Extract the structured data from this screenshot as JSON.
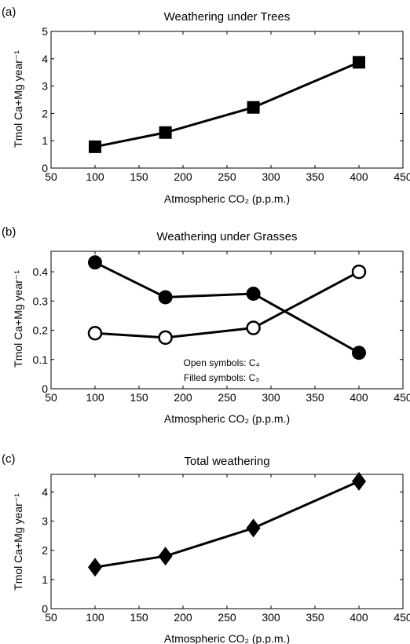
{
  "chart_data": [
    {
      "type": "line",
      "panel_label": "(a)",
      "title": "Weathering under Trees",
      "xlabel": "Atmospheric CO₂ (p.p.m.)",
      "ylabel": "Tmol Ca+Mg year⁻¹",
      "xlim": [
        50,
        450
      ],
      "ylim": [
        0,
        5
      ],
      "xticks": [
        "50",
        "100",
        "150",
        "200",
        "250",
        "300",
        "350",
        "400",
        "450"
      ],
      "yticks": [
        "0",
        "1",
        "2",
        "3",
        "4",
        "5"
      ],
      "grid": false,
      "annotations": [],
      "series": [
        {
          "marker": "square-filled",
          "x": [
            100,
            180,
            280,
            400
          ],
          "y": [
            0.78,
            1.3,
            2.22,
            3.87
          ]
        }
      ]
    },
    {
      "type": "line",
      "panel_label": "(b)",
      "title": "Weathering under Grasses",
      "xlabel": "Atmospheric CO₂ (p.p.m.)",
      "ylabel": "Tmol Ca+Mg year⁻¹",
      "xlim": [
        50,
        450
      ],
      "ylim": [
        0,
        0.47
      ],
      "xticks": [
        "50",
        "100",
        "150",
        "200",
        "250",
        "300",
        "350",
        "400",
        "450"
      ],
      "yticks": [
        "0",
        "0.1",
        "0.2",
        "0.3",
        "0.4"
      ],
      "grid": false,
      "annotations": [
        "Open symbols: C₄",
        "Filled symbols: C₃"
      ],
      "series": [
        {
          "marker": "circle-filled",
          "x": [
            100,
            180,
            280,
            400
          ],
          "y": [
            0.432,
            0.313,
            0.325,
            0.123
          ]
        },
        {
          "marker": "circle-open",
          "x": [
            100,
            180,
            280,
            400
          ],
          "y": [
            0.19,
            0.175,
            0.208,
            0.4
          ]
        }
      ]
    },
    {
      "type": "line",
      "panel_label": "(c)",
      "title": "Total weathering",
      "xlabel": "Atmospheric CO₂ (p.p.m.)",
      "ylabel": "Tmol Ca+Mg year⁻¹",
      "xlim": [
        50,
        450
      ],
      "ylim": [
        0,
        4.6
      ],
      "xticks": [
        "50",
        "100",
        "150",
        "200",
        "250",
        "300",
        "350",
        "400",
        "450"
      ],
      "yticks": [
        "0",
        "1",
        "2",
        "3",
        "4"
      ],
      "grid": false,
      "annotations": [],
      "series": [
        {
          "marker": "diamond-filled",
          "x": [
            100,
            180,
            280,
            400
          ],
          "y": [
            1.42,
            1.8,
            2.76,
            4.36
          ]
        }
      ]
    }
  ]
}
